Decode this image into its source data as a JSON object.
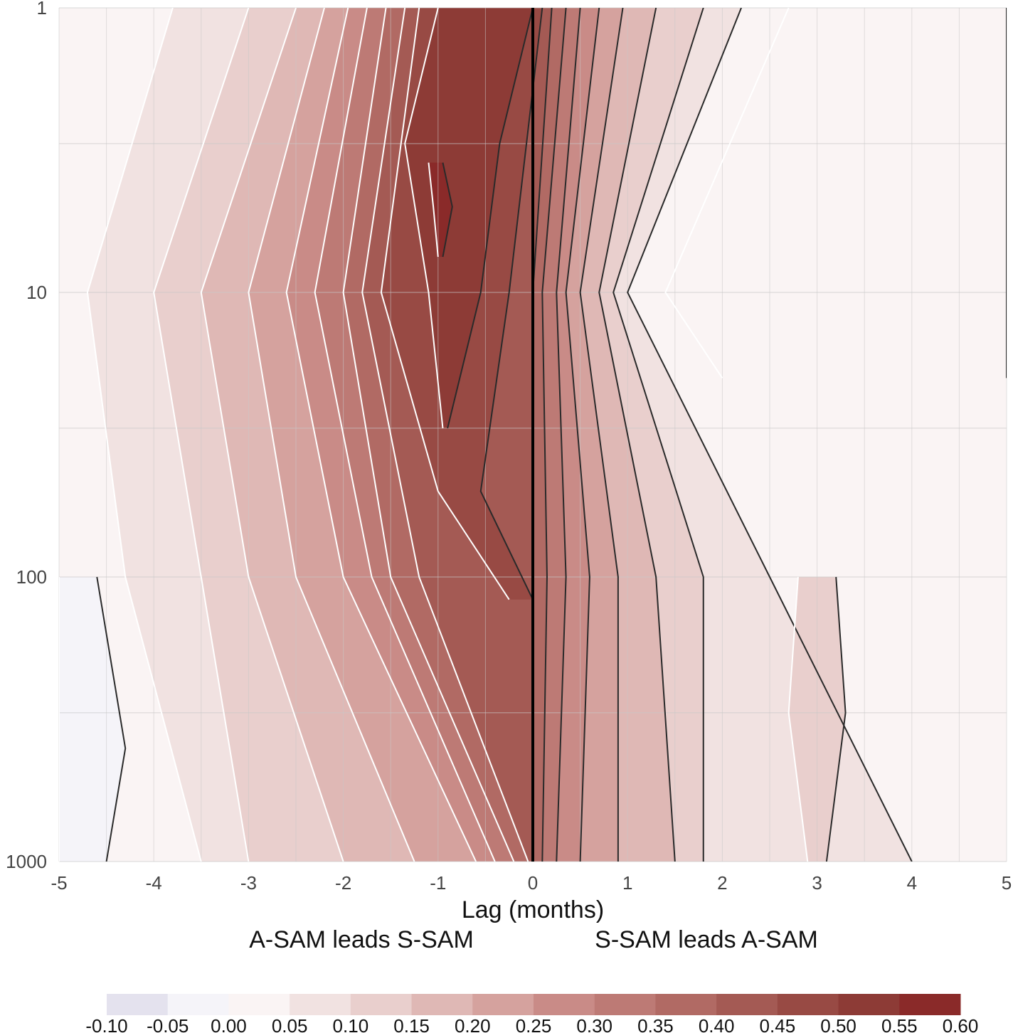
{
  "chart_data": {
    "type": "contour",
    "title": "",
    "xlabel": "Lag (months)",
    "ylabel": "",
    "xlim": [
      -5,
      5
    ],
    "ylim": [
      1,
      1000
    ],
    "yscale": "log",
    "y_reversed": true,
    "xticks": [
      "-5",
      "-4",
      "-3",
      "-2",
      "-1",
      "0",
      "1",
      "2",
      "3",
      "4",
      "5"
    ],
    "yticks": [
      {
        "value": 1,
        "label": "1"
      },
      {
        "value": 10,
        "label": "10"
      },
      {
        "value": 100,
        "label": "100"
      },
      {
        "value": 1000,
        "label": "1000"
      }
    ],
    "annotations": {
      "left": "A-SAM leads S-SAM",
      "right": "S-SAM leads A-SAM"
    },
    "zero_lag_line": 0,
    "colorbar": {
      "levels": [
        -0.1,
        -0.05,
        0.0,
        0.05,
        0.1,
        0.15,
        0.2,
        0.25,
        0.3,
        0.35,
        0.4,
        0.45,
        0.5,
        0.55,
        0.6
      ],
      "labels": [
        "-0.10",
        "-0.05",
        "0.00",
        "0.05",
        "0.10",
        "0.15",
        "0.20",
        "0.25",
        "0.30",
        "0.35",
        "0.40",
        "0.45",
        "0.50",
        "0.55",
        "0.60"
      ],
      "colors": [
        "#e4e2ee",
        "#f5f4f9",
        "#faf4f4",
        "#f1e2e1",
        "#e9cfcd",
        "#dfb8b5",
        "#d5a29e",
        "#c98b87",
        "#bd7a75",
        "#b16a64",
        "#a45a54",
        "#984a44",
        "#8d3b36",
        "#8a2a29"
      ]
    },
    "series": [
      {
        "name": "0.55",
        "pressure": [
          3.5,
          5,
          7.5
        ],
        "lag_min": [
          -1.1,
          -1.05,
          -1.0
        ],
        "lag_max": [
          -0.95,
          -0.85,
          -0.95
        ]
      },
      {
        "name": "0.50",
        "pressure": [
          1,
          3,
          10,
          30
        ],
        "lag_min": [
          -1.0,
          -1.35,
          -1.1,
          -0.95
        ],
        "lag_max": [
          0.0,
          -0.35,
          -0.55,
          -0.9
        ]
      },
      {
        "name": "0.45",
        "pressure": [
          1,
          10,
          50,
          120
        ],
        "lag_min": [
          -1.2,
          -1.6,
          -1.0,
          -0.25
        ],
        "lag_max": [
          0.1,
          -0.25,
          -0.55,
          0.0
        ]
      },
      {
        "name": "0.40",
        "pressure": [
          1,
          10,
          100,
          1000
        ],
        "lag_min": [
          -1.35,
          -1.8,
          -1.2,
          -0.05
        ],
        "lag_max": [
          0.2,
          0.0,
          0.0,
          0.0
        ]
      },
      {
        "name": "0.35",
        "pressure": [
          1,
          10,
          100,
          1000
        ],
        "lag_min": [
          -1.55,
          -2.0,
          -1.5,
          -0.2
        ],
        "lag_max": [
          0.35,
          0.1,
          0.15,
          0.1
        ]
      },
      {
        "name": "0.30",
        "pressure": [
          1,
          10,
          100,
          1000
        ],
        "lag_min": [
          -1.75,
          -2.3,
          -1.7,
          -0.4
        ],
        "lag_max": [
          0.5,
          0.25,
          0.35,
          0.25
        ]
      },
      {
        "name": "0.25",
        "pressure": [
          1,
          10,
          100,
          1000
        ],
        "lag_min": [
          -1.95,
          -2.6,
          -2.0,
          -0.6
        ],
        "lag_max": [
          0.7,
          0.35,
          0.6,
          0.5
        ]
      },
      {
        "name": "0.20",
        "pressure": [
          1,
          10,
          100,
          1000
        ],
        "lag_min": [
          -2.2,
          -3.0,
          -2.5,
          -1.25
        ],
        "lag_max": [
          0.95,
          0.5,
          0.9,
          0.9
        ]
      },
      {
        "name": "0.15",
        "pressure": [
          1,
          10,
          100,
          1000
        ],
        "lag_min": [
          -2.5,
          -3.5,
          -3.0,
          -2.0
        ],
        "lag_max": [
          1.3,
          0.7,
          1.3,
          1.5
        ]
      },
      {
        "name": "0.10",
        "pressure": [
          1,
          10,
          100,
          1000
        ],
        "lag_min": [
          -3.0,
          -4.0,
          -3.5,
          -3.0
        ],
        "lag_max": [
          1.8,
          0.85,
          1.8,
          1.8
        ]
      },
      {
        "name": "0.10 (lag 3 cell)",
        "pressure": [
          100,
          300,
          1000
        ],
        "lag_min": [
          2.8,
          2.7,
          2.9
        ],
        "lag_max": [
          3.2,
          3.3,
          3.1
        ]
      },
      {
        "name": "0.05",
        "pressure": [
          1,
          10,
          100,
          1000
        ],
        "lag_min": [
          -3.8,
          -4.7,
          -4.3,
          -3.5
        ],
        "lag_max": [
          2.2,
          1.0,
          2.5,
          4.0
        ]
      },
      {
        "name": "0.00 (upper right)",
        "pressure": [
          1,
          10,
          20
        ],
        "lag_min": [
          2.7,
          1.4,
          2.0
        ],
        "lag_max": [
          5.0,
          5.0,
          5.0
        ]
      },
      {
        "name": "-0.05 (lower left)",
        "pressure": [
          100,
          400,
          1000
        ],
        "lag_min": [
          -5.0,
          -5.0,
          -5.0
        ],
        "lag_max": [
          -4.6,
          -4.3,
          -4.5
        ]
      }
    ]
  }
}
